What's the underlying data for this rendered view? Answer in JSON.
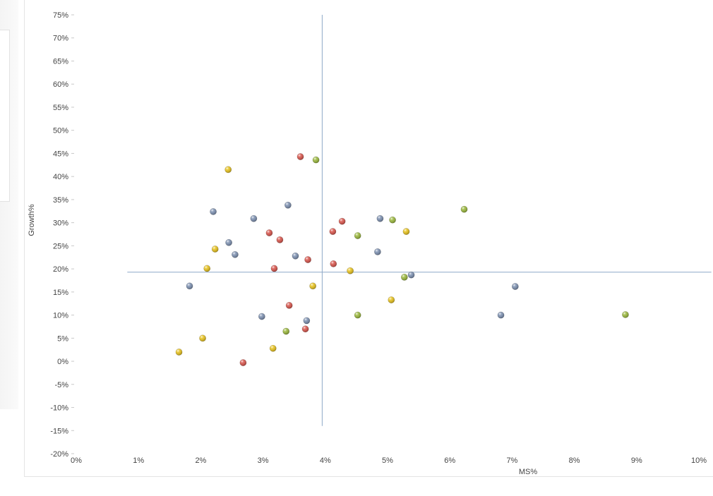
{
  "chart_data": {
    "type": "scatter",
    "title": "",
    "xlabel": "MS%",
    "ylabel": "Growth%",
    "xlim": [
      0,
      10
    ],
    "ylim": [
      -20,
      75
    ],
    "x_ticks": [
      0,
      1,
      2,
      3,
      4,
      5,
      6,
      7,
      8,
      9,
      10
    ],
    "x_tick_labels": [
      "0%",
      "1%",
      "2%",
      "3%",
      "4%",
      "5%",
      "6%",
      "7%",
      "8%",
      "9%",
      "10%"
    ],
    "y_ticks": [
      75,
      70,
      65,
      60,
      55,
      50,
      45,
      40,
      35,
      30,
      25,
      20,
      15,
      10,
      5,
      0,
      -5,
      -10,
      -15,
      -20
    ],
    "y_tick_labels": [
      "75%",
      "70%",
      "65%",
      "60%",
      "55%",
      "50%",
      "45%",
      "40%",
      "35%",
      "30%",
      "25%",
      "20%",
      "15%",
      "10%",
      "5%",
      "0%",
      "-5%",
      "-10%",
      "-15%",
      "-20%"
    ],
    "reference_lines": {
      "x": 3.95,
      "y": 19.3,
      "x_line_y_range": [
        -14,
        75
      ],
      "y_line_x_range": [
        0.82,
        10.2
      ]
    },
    "grid": false,
    "colors": {
      "blue": "#7b8fb0",
      "red": "#d9534a",
      "green": "#9ab83a",
      "yellow": "#e8c21a",
      "refline": "#8ea8c8"
    },
    "series": [
      {
        "color": "#7b8fb0",
        "points": [
          [
            2.2,
            32.4
          ],
          [
            2.85,
            30.9
          ],
          [
            3.4,
            33.8
          ],
          [
            2.45,
            25.7
          ],
          [
            2.55,
            23.1
          ],
          [
            3.52,
            22.8
          ],
          [
            1.82,
            16.3
          ],
          [
            2.98,
            9.7
          ],
          [
            3.7,
            8.8
          ],
          [
            4.88,
            30.9
          ],
          [
            4.84,
            23.7
          ],
          [
            5.38,
            18.7
          ],
          [
            7.05,
            16.2
          ],
          [
            6.82,
            10.0
          ]
        ]
      },
      {
        "color": "#d9534a",
        "points": [
          [
            3.6,
            44.3
          ],
          [
            3.1,
            27.8
          ],
          [
            3.27,
            26.3
          ],
          [
            3.72,
            22.0
          ],
          [
            3.18,
            20.1
          ],
          [
            3.42,
            12.1
          ],
          [
            3.68,
            7.0
          ],
          [
            2.68,
            -0.3
          ],
          [
            4.12,
            28.1
          ],
          [
            4.27,
            30.3
          ],
          [
            4.13,
            21.1
          ]
        ]
      },
      {
        "color": "#9ab83a",
        "points": [
          [
            3.85,
            43.6
          ],
          [
            4.52,
            27.2
          ],
          [
            5.08,
            30.6
          ],
          [
            5.27,
            18.2
          ],
          [
            4.52,
            10.0
          ],
          [
            3.37,
            6.5
          ],
          [
            6.23,
            32.9
          ],
          [
            8.82,
            10.1
          ]
        ]
      },
      {
        "color": "#e8c21a",
        "points": [
          [
            2.44,
            41.5
          ],
          [
            2.23,
            24.3
          ],
          [
            2.1,
            20.1
          ],
          [
            1.65,
            2.0
          ],
          [
            2.03,
            5.0
          ],
          [
            3.16,
            2.8
          ],
          [
            3.8,
            16.3
          ],
          [
            4.4,
            19.6
          ],
          [
            5.3,
            28.1
          ],
          [
            5.06,
            13.3
          ]
        ]
      }
    ]
  }
}
